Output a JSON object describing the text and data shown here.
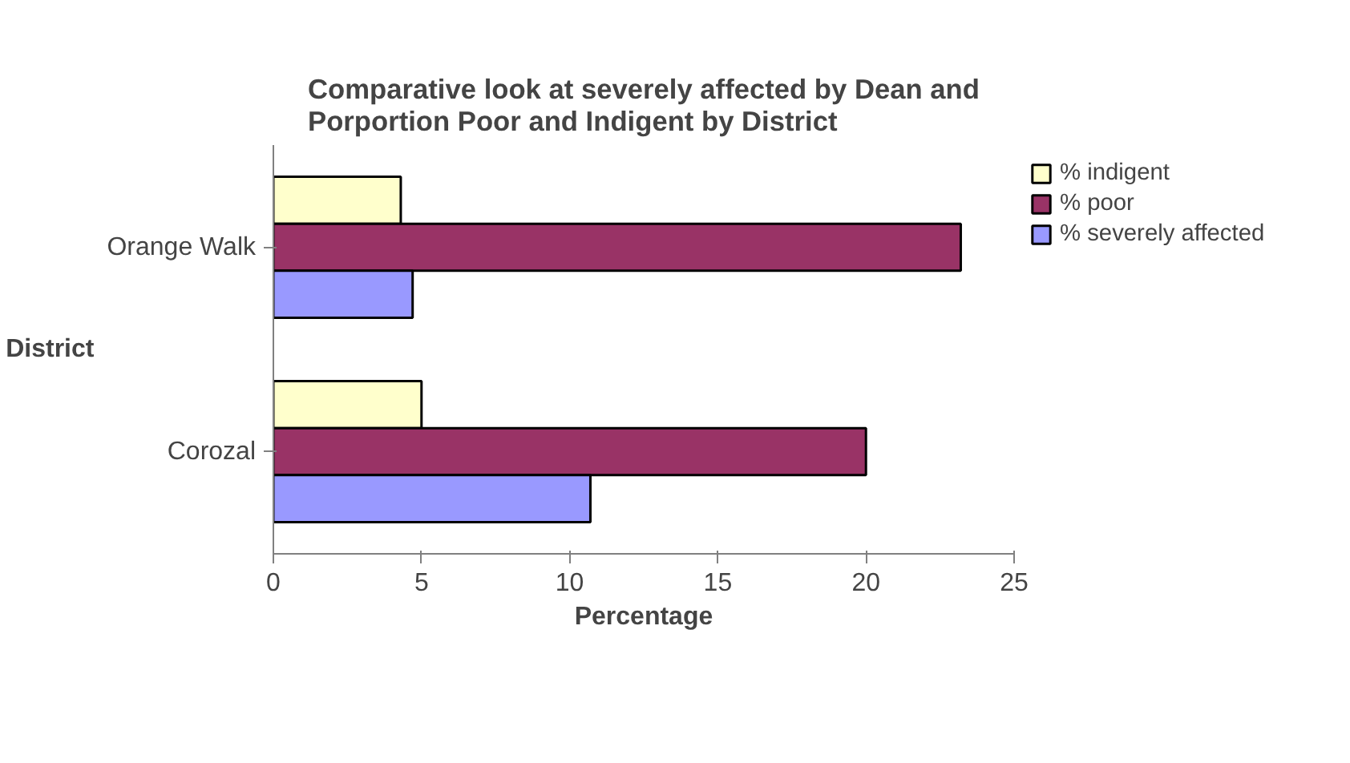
{
  "chart_data": {
    "type": "bar",
    "orientation": "horizontal",
    "title": "Comparative look at severely affected by Dean and Porportion Poor and Indigent by District",
    "xlabel": "Percentage",
    "ylabel": "District",
    "categories": [
      "Orange Walk",
      "Corozal"
    ],
    "series": [
      {
        "name": "% indigent",
        "color": "#ffffcc",
        "values": [
          4.3,
          5.0
        ]
      },
      {
        "name": "% poor",
        "color": "#993366",
        "values": [
          23.2,
          20.0
        ]
      },
      {
        "name": "% severely affected",
        "color": "#9999ff",
        "values": [
          4.7,
          10.7
        ]
      }
    ],
    "xlim": [
      0,
      25
    ],
    "xticks": [
      0,
      5,
      10,
      15,
      20,
      25
    ],
    "grid": false,
    "legend": "right"
  }
}
